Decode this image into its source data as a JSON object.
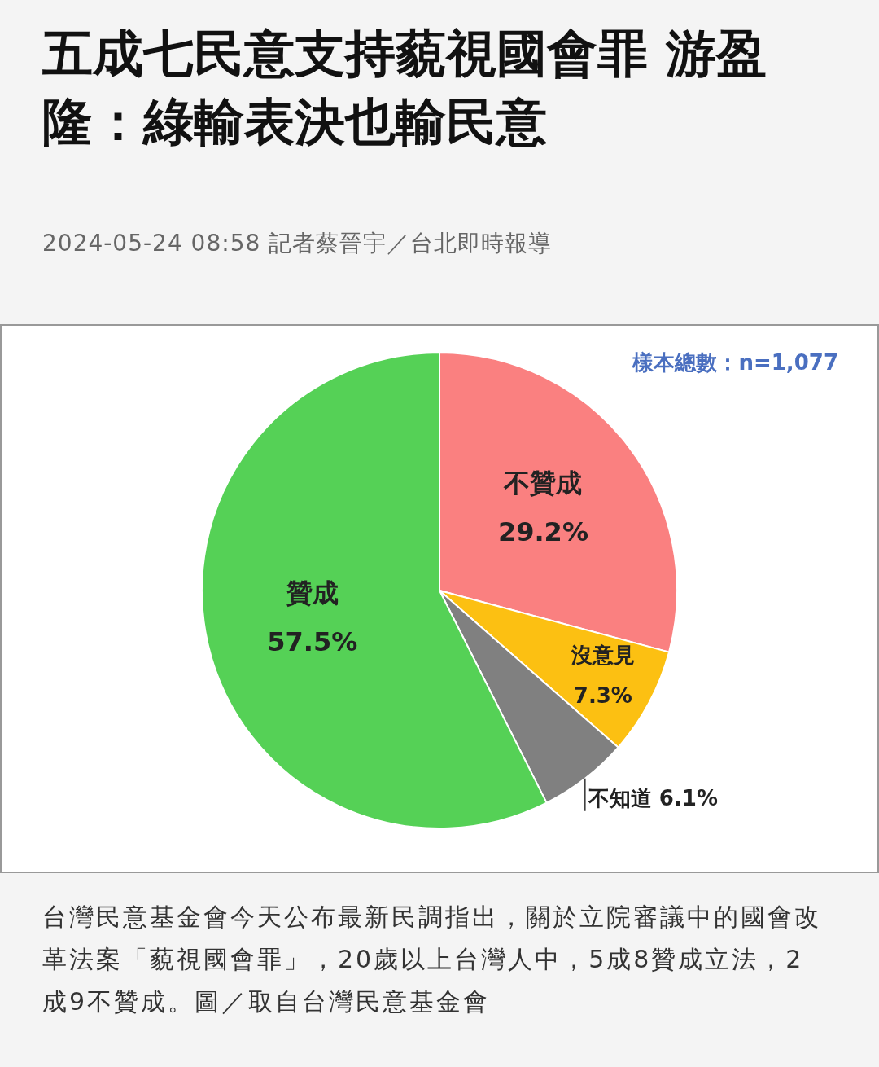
{
  "chart_data": {
    "type": "pie",
    "title": "五成七民意支持藐視國會罪 游盈隆：綠輸表決也輸民意",
    "subtitle": "2024-05-24 08:58 記者蔡晉宇／台北即時報導",
    "categories": [
      "不贊成",
      "沒意見",
      "不知道",
      "贊成"
    ],
    "values": [
      29.2,
      7.3,
      6.1,
      57.5
    ],
    "colors": [
      "#fa8080",
      "#fcc012",
      "#808080",
      "#55d156"
    ],
    "value_labels": [
      "29.2%",
      "7.3%",
      "6.1%",
      "57.5%"
    ],
    "annotations": [
      "樣本總數：n=1,077",
      "台灣民意基金會今天公布最新民調指出，關於立院審議中的國會改革法案「藐視國會罪」，20歲以上台灣人中，5成8贊成立法，2成9不贊成。圖／取自台灣民意基金會"
    ]
  }
}
